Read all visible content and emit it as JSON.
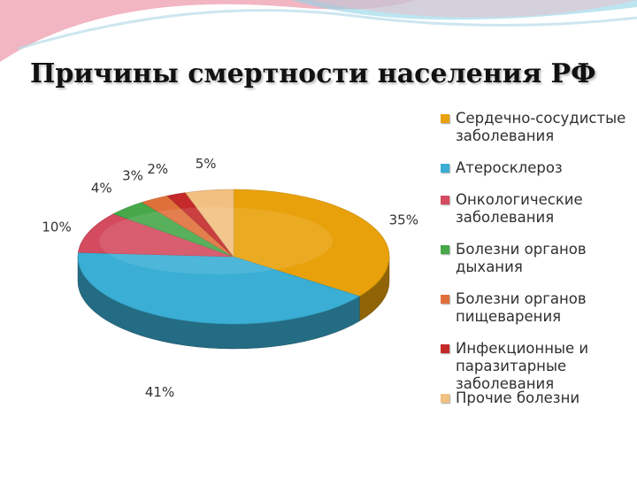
{
  "slide": {
    "title": "Причины смертности населения РФ"
  },
  "colors": {
    "ribbon_pink": "#e8798f",
    "ribbon_blue": "#8fd3e6"
  },
  "chart_data": {
    "type": "pie",
    "title": "",
    "legend_position": "right",
    "slices": [
      {
        "label": "Сердечно-сосудистые заболевания",
        "value": 35,
        "value_label": "35%",
        "color": "#e8a10a"
      },
      {
        "label": "Атеросклероз",
        "value": 41,
        "value_label": "41%",
        "color": "#3aaed4"
      },
      {
        "label": "Онкологические заболевания",
        "value": 10,
        "value_label": "10%",
        "color": "#d44b5f"
      },
      {
        "label": "Болезни органов дыхания",
        "value": 4,
        "value_label": "4%",
        "color": "#47a84a"
      },
      {
        "label": "Болезни органов пищеварения",
        "value": 3,
        "value_label": "3%",
        "color": "#e0703a"
      },
      {
        "label": "Инфекционные и паразитарные заболевания",
        "value": 2,
        "value_label": "2%",
        "color": "#c42a2a"
      },
      {
        "label": "Прочие болезни",
        "value": 5,
        "value_label": "5%",
        "color": "#f2c080"
      }
    ]
  }
}
